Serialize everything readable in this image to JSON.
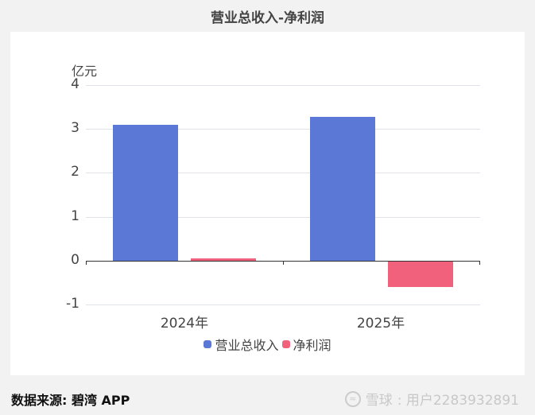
{
  "title": "营业总收入-净利润",
  "unit_label": "亿元",
  "y_ticks": [
    "4",
    "3",
    "2",
    "1",
    "0",
    "-1"
  ],
  "x_labels": [
    "2024年",
    "2025年"
  ],
  "legend": [
    {
      "name": "营业总收入",
      "color": "#5b78d6"
    },
    {
      "name": "净利润",
      "color": "#f2617c"
    }
  ],
  "footer": {
    "source": "数据来源: 碧湾 APP",
    "brand": "雪球",
    "user": ": 用户2283932891"
  },
  "chart_data": {
    "type": "bar",
    "title": "营业总收入-净利润",
    "xlabel": "",
    "ylabel": "亿元",
    "categories": [
      "2024年",
      "2025年"
    ],
    "series": [
      {
        "name": "营业总收入",
        "values": [
          3.09,
          3.27
        ],
        "color": "#5b78d6"
      },
      {
        "name": "净利润",
        "values": [
          0.05,
          -0.58
        ],
        "color": "#f2617c"
      }
    ],
    "ylim": [
      -1,
      4
    ],
    "yticks": [
      -1,
      0,
      1,
      2,
      3,
      4
    ],
    "grid": true,
    "legend_position": "bottom"
  }
}
